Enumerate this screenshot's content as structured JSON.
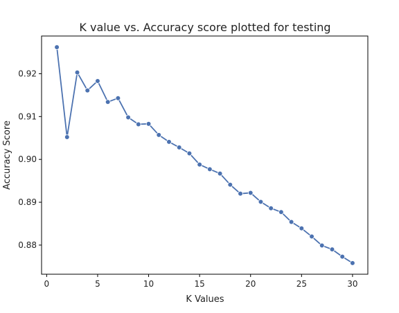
{
  "chart_data": {
    "type": "line",
    "title": "K value vs. Accuracy score plotted for testing",
    "xlabel": "K Values",
    "ylabel": "Accuracy Score",
    "xlim": [
      -0.5,
      31.5
    ],
    "ylim": [
      0.8732,
      0.9288
    ],
    "xticks": [
      0,
      5,
      10,
      15,
      20,
      25,
      30
    ],
    "yticks": [
      0.88,
      0.89,
      0.9,
      0.91,
      0.92
    ],
    "ytick_labels": [
      "0.88",
      "0.89",
      "0.90",
      "0.91",
      "0.92"
    ],
    "grid": false,
    "marker": "circle",
    "color": "#4c72b0",
    "series": [
      {
        "x": [
          1,
          2,
          3,
          4,
          5,
          6,
          7,
          8,
          9,
          10,
          11,
          12,
          13,
          14,
          15,
          16,
          17,
          18,
          19,
          20,
          21,
          22,
          23,
          24,
          25,
          26,
          27,
          28,
          29,
          30
        ],
        "values": [
          0.9262,
          0.9052,
          0.9203,
          0.9161,
          0.9183,
          0.9134,
          0.9143,
          0.9098,
          0.9082,
          0.9083,
          0.9057,
          0.9041,
          0.9028,
          0.9014,
          0.8988,
          0.8977,
          0.8967,
          0.8941,
          0.892,
          0.8922,
          0.8901,
          0.8886,
          0.8877,
          0.8854,
          0.8839,
          0.882,
          0.8799,
          0.879,
          0.8773,
          0.8758
        ]
      }
    ]
  }
}
